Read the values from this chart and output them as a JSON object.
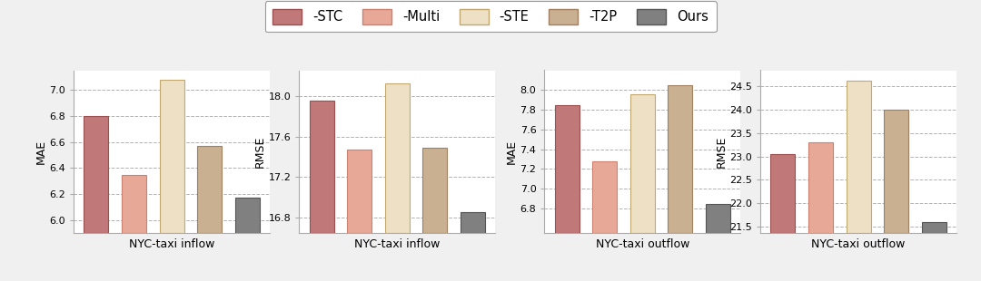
{
  "legend_labels": [
    "-STC",
    "-Multi",
    "-STE",
    "-T2P",
    "Ours"
  ],
  "bar_colors": [
    "#c07878",
    "#e8a898",
    "#ede0c4",
    "#c8b090",
    "#808080"
  ],
  "bar_edge_colors": [
    "#9a5050",
    "#cc8070",
    "#c0a870",
    "#a08060",
    "#555555"
  ],
  "subplots": [
    {
      "title": "NYC-taxi inflow",
      "ylabel": "MAE",
      "values": [
        6.8,
        6.35,
        7.08,
        6.57,
        6.17
      ],
      "ylim": [
        5.9,
        7.15
      ],
      "yticks": [
        6.0,
        6.2,
        6.4,
        6.6,
        6.8,
        7.0
      ]
    },
    {
      "title": "NYC-taxi inflow",
      "ylabel": "RMSE",
      "values": [
        17.95,
        17.47,
        18.12,
        17.49,
        16.86
      ],
      "ylim": [
        16.65,
        18.25
      ],
      "yticks": [
        16.8,
        17.2,
        17.6,
        18.0
      ]
    },
    {
      "title": "NYC-taxi outflow",
      "ylabel": "MAE",
      "values": [
        7.85,
        7.28,
        7.96,
        8.05,
        6.85
      ],
      "ylim": [
        6.55,
        8.2
      ],
      "yticks": [
        6.8,
        7.0,
        7.2,
        7.4,
        7.6,
        7.8,
        8.0
      ]
    },
    {
      "title": "NYC-taxi outflow",
      "ylabel": "RMSE",
      "values": [
        23.05,
        23.3,
        24.62,
        24.0,
        21.58
      ],
      "ylim": [
        21.35,
        24.85
      ],
      "yticks": [
        21.5,
        22.0,
        22.5,
        23.0,
        23.5,
        24.0,
        24.5
      ]
    }
  ],
  "background_color": "#ffffff",
  "figure_facecolor": "#f0f0f0"
}
